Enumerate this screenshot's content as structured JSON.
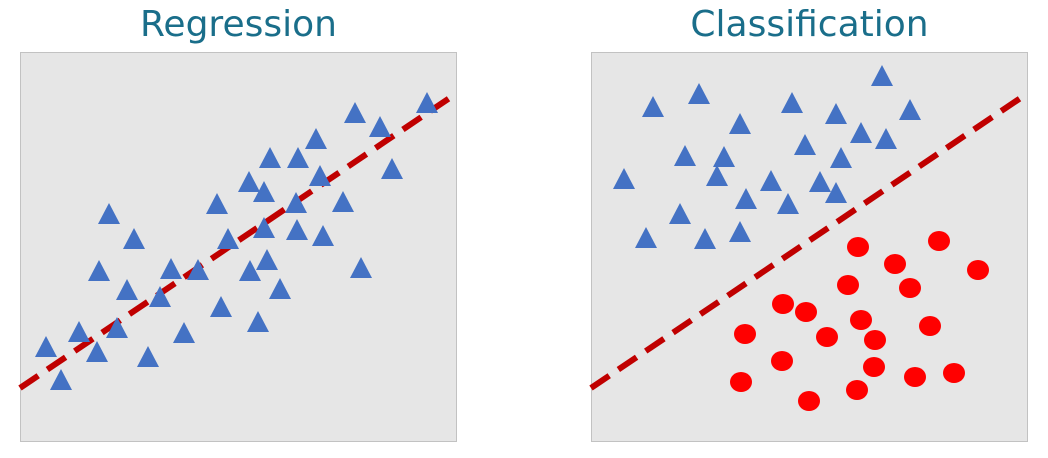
{
  "panels": {
    "left": {
      "title": "Regression"
    },
    "right": {
      "title": "Classification"
    }
  },
  "colors": {
    "title_text": "#1a6e8a",
    "panel_background": "#e6e6e6",
    "triangle_marker": "#4472c4",
    "circle_marker": "#ff0000",
    "dashed_line": "#c00000"
  },
  "markers": {
    "left_triangle_icon": "triangle-marker",
    "right_triangle_icon": "triangle-marker",
    "right_circle_icon": "circle-marker"
  }
}
